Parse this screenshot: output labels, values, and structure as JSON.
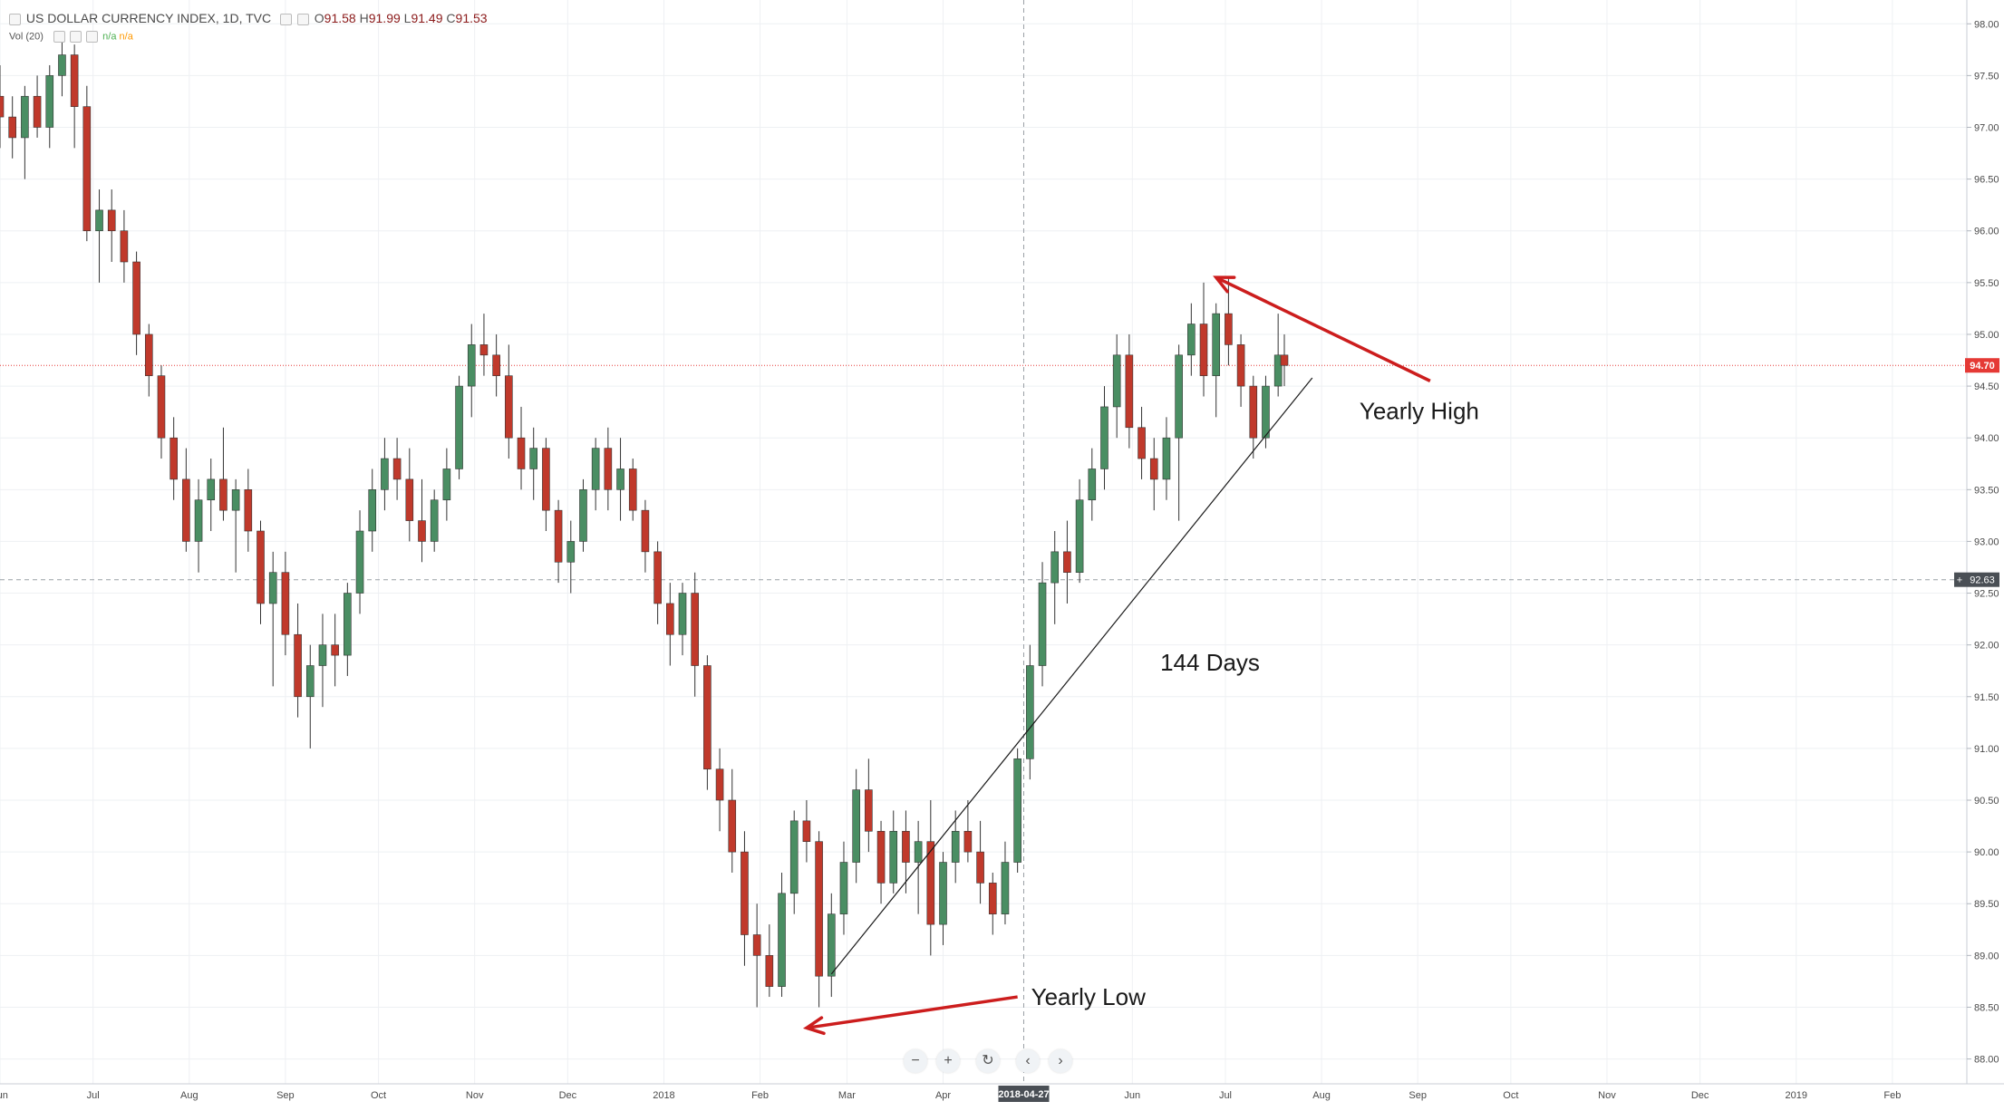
{
  "header": {
    "symbol": "US DOLLAR CURRENCY INDEX, 1D, TVC",
    "ohlc": [
      {
        "label": "O",
        "value": "91.58"
      },
      {
        "label": "H",
        "value": "91.99"
      },
      {
        "label": "L",
        "value": "91.49"
      },
      {
        "label": "C",
        "value": "91.53"
      }
    ],
    "volume_label": "Vol (20)",
    "volume_values": [
      "n/a",
      "n/a"
    ]
  },
  "price_axis": {
    "ticks": [
      "98.00",
      "97.50",
      "97.00",
      "96.50",
      "96.00",
      "95.50",
      "95.00",
      "94.50",
      "94.00",
      "93.50",
      "93.00",
      "92.50",
      "92.00",
      "91.50",
      "91.00",
      "90.50",
      "90.00",
      "89.50",
      "89.00",
      "88.50",
      "88.00"
    ],
    "last_price_label": "94.70",
    "crosshair_price_label": "92.63"
  },
  "time_axis": {
    "labels": [
      "Jun",
      "Jul",
      "Aug",
      "Sep",
      "Oct",
      "Nov",
      "Dec",
      "2018",
      "Feb",
      "Mar",
      "Apr",
      "Jun",
      "Jul",
      "Aug",
      "Sep",
      "Oct",
      "Nov",
      "Dec",
      "2019",
      "Feb"
    ],
    "crosshair_date_label": "2018-04-27"
  },
  "annotations": {
    "yearly_high": "Yearly High",
    "yearly_low": "Yearly Low",
    "days": "144 Days"
  },
  "zoom_controls": [
    "minus",
    "plus",
    "reset",
    "back",
    "forward"
  ],
  "colors": {
    "up": "#4a8e63",
    "down": "#c0392b",
    "grid": "#eef0f3",
    "arrow": "#cc1d1d",
    "last_price_line": "#e53935",
    "crosshair": "#9aa0a6"
  },
  "chart_data": {
    "type": "candlestick",
    "title": "US DOLLAR CURRENCY INDEX, 1D, TVC",
    "xlabel": "",
    "ylabel": "",
    "ylim": [
      87.76,
      98.23
    ],
    "x_range": [
      "2017-06-01",
      "2019-02-25"
    ],
    "grid": true,
    "ohlc": [
      [
        "2017-06-01",
        97.3,
        97.6,
        96.8,
        97.1
      ],
      [
        "2017-06-05",
        97.1,
        97.3,
        96.7,
        96.9
      ],
      [
        "2017-06-09",
        96.9,
        97.4,
        96.5,
        97.3
      ],
      [
        "2017-06-13",
        97.3,
        97.5,
        96.9,
        97.0
      ],
      [
        "2017-06-17",
        97.0,
        97.6,
        96.8,
        97.5
      ],
      [
        "2017-06-21",
        97.5,
        97.9,
        97.3,
        97.7
      ],
      [
        "2017-06-25",
        97.7,
        97.8,
        96.8,
        97.2
      ],
      [
        "2017-06-29",
        97.2,
        97.4,
        95.9,
        96.0
      ],
      [
        "2017-07-03",
        96.0,
        96.4,
        95.5,
        96.2
      ],
      [
        "2017-07-07",
        96.2,
        96.4,
        95.7,
        96.0
      ],
      [
        "2017-07-11",
        96.0,
        96.2,
        95.5,
        95.7
      ],
      [
        "2017-07-15",
        95.7,
        95.8,
        94.8,
        95.0
      ],
      [
        "2017-07-19",
        95.0,
        95.1,
        94.4,
        94.6
      ],
      [
        "2017-07-23",
        94.6,
        94.7,
        93.8,
        94.0
      ],
      [
        "2017-07-27",
        94.0,
        94.2,
        93.4,
        93.6
      ],
      [
        "2017-07-31",
        93.6,
        93.9,
        92.9,
        93.0
      ],
      [
        "2017-08-04",
        93.0,
        93.6,
        92.7,
        93.4
      ],
      [
        "2017-08-08",
        93.4,
        93.8,
        93.1,
        93.6
      ],
      [
        "2017-08-12",
        93.6,
        94.1,
        93.2,
        93.3
      ],
      [
        "2017-08-16",
        93.3,
        93.6,
        92.7,
        93.5
      ],
      [
        "2017-08-20",
        93.5,
        93.7,
        92.9,
        93.1
      ],
      [
        "2017-08-24",
        93.1,
        93.2,
        92.2,
        92.4
      ],
      [
        "2017-08-28",
        92.4,
        92.9,
        91.6,
        92.7
      ],
      [
        "2017-09-01",
        92.7,
        92.9,
        91.9,
        92.1
      ],
      [
        "2017-09-05",
        92.1,
        92.4,
        91.3,
        91.5
      ],
      [
        "2017-09-09",
        91.5,
        92.0,
        91.0,
        91.8
      ],
      [
        "2017-09-13",
        91.8,
        92.3,
        91.4,
        92.0
      ],
      [
        "2017-09-17",
        92.0,
        92.3,
        91.6,
        91.9
      ],
      [
        "2017-09-21",
        91.9,
        92.6,
        91.7,
        92.5
      ],
      [
        "2017-09-25",
        92.5,
        93.3,
        92.3,
        93.1
      ],
      [
        "2017-09-29",
        93.1,
        93.7,
        92.9,
        93.5
      ],
      [
        "2017-10-03",
        93.5,
        94.0,
        93.3,
        93.8
      ],
      [
        "2017-10-07",
        93.8,
        94.0,
        93.4,
        93.6
      ],
      [
        "2017-10-11",
        93.6,
        93.9,
        93.0,
        93.2
      ],
      [
        "2017-10-15",
        93.2,
        93.6,
        92.8,
        93.0
      ],
      [
        "2017-10-19",
        93.0,
        93.5,
        92.9,
        93.4
      ],
      [
        "2017-10-23",
        93.4,
        93.9,
        93.2,
        93.7
      ],
      [
        "2017-10-27",
        93.7,
        94.6,
        93.6,
        94.5
      ],
      [
        "2017-10-31",
        94.5,
        95.1,
        94.2,
        94.9
      ],
      [
        "2017-11-04",
        94.9,
        95.2,
        94.6,
        94.8
      ],
      [
        "2017-11-08",
        94.8,
        95.0,
        94.4,
        94.6
      ],
      [
        "2017-11-12",
        94.6,
        94.9,
        93.8,
        94.0
      ],
      [
        "2017-11-16",
        94.0,
        94.3,
        93.5,
        93.7
      ],
      [
        "2017-11-20",
        93.7,
        94.1,
        93.4,
        93.9
      ],
      [
        "2017-11-24",
        93.9,
        94.0,
        93.1,
        93.3
      ],
      [
        "2017-11-28",
        93.3,
        93.4,
        92.6,
        92.8
      ],
      [
        "2017-12-02",
        92.8,
        93.2,
        92.5,
        93.0
      ],
      [
        "2017-12-06",
        93.0,
        93.6,
        92.9,
        93.5
      ],
      [
        "2017-12-10",
        93.5,
        94.0,
        93.3,
        93.9
      ],
      [
        "2017-12-14",
        93.9,
        94.1,
        93.3,
        93.5
      ],
      [
        "2017-12-18",
        93.5,
        94.0,
        93.2,
        93.7
      ],
      [
        "2017-12-22",
        93.7,
        93.8,
        93.2,
        93.3
      ],
      [
        "2017-12-26",
        93.3,
        93.4,
        92.7,
        92.9
      ],
      [
        "2017-12-30",
        92.9,
        93.0,
        92.2,
        92.4
      ],
      [
        "2018-01-03",
        92.4,
        92.6,
        91.8,
        92.1
      ],
      [
        "2018-01-07",
        92.1,
        92.6,
        91.9,
        92.5
      ],
      [
        "2018-01-11",
        92.5,
        92.7,
        91.5,
        91.8
      ],
      [
        "2018-01-15",
        91.8,
        91.9,
        90.6,
        90.8
      ],
      [
        "2018-01-19",
        90.8,
        91.0,
        90.2,
        90.5
      ],
      [
        "2018-01-23",
        90.5,
        90.8,
        89.8,
        90.0
      ],
      [
        "2018-01-27",
        90.0,
        90.2,
        88.9,
        89.2
      ],
      [
        "2018-01-31",
        89.2,
        89.5,
        88.5,
        89.0
      ],
      [
        "2018-02-04",
        89.0,
        89.3,
        88.6,
        88.7
      ],
      [
        "2018-02-08",
        88.7,
        89.8,
        88.6,
        89.6
      ],
      [
        "2018-02-12",
        89.6,
        90.4,
        89.4,
        90.3
      ],
      [
        "2018-02-16",
        90.3,
        90.5,
        89.9,
        90.1
      ],
      [
        "2018-02-20",
        90.1,
        90.2,
        88.5,
        88.8
      ],
      [
        "2018-02-24",
        88.8,
        89.6,
        88.6,
        89.4
      ],
      [
        "2018-02-28",
        89.4,
        90.1,
        89.2,
        89.9
      ],
      [
        "2018-03-04",
        89.9,
        90.8,
        89.7,
        90.6
      ],
      [
        "2018-03-08",
        90.6,
        90.9,
        90.0,
        90.2
      ],
      [
        "2018-03-12",
        90.2,
        90.3,
        89.5,
        89.7
      ],
      [
        "2018-03-16",
        89.7,
        90.4,
        89.6,
        90.2
      ],
      [
        "2018-03-20",
        90.2,
        90.4,
        89.6,
        89.9
      ],
      [
        "2018-03-24",
        89.9,
        90.3,
        89.4,
        90.1
      ],
      [
        "2018-03-28",
        90.1,
        90.5,
        89.0,
        89.3
      ],
      [
        "2018-04-01",
        89.3,
        90.0,
        89.1,
        89.9
      ],
      [
        "2018-04-05",
        89.9,
        90.4,
        89.7,
        90.2
      ],
      [
        "2018-04-09",
        90.2,
        90.5,
        89.9,
        90.0
      ],
      [
        "2018-04-13",
        90.0,
        90.3,
        89.5,
        89.7
      ],
      [
        "2018-04-17",
        89.7,
        89.8,
        89.2,
        89.4
      ],
      [
        "2018-04-21",
        89.4,
        90.1,
        89.3,
        89.9
      ],
      [
        "2018-04-25",
        89.9,
        91.0,
        89.8,
        90.9
      ],
      [
        "2018-04-29",
        90.9,
        92.0,
        90.7,
        91.8
      ],
      [
        "2018-05-03",
        91.8,
        92.8,
        91.6,
        92.6
      ],
      [
        "2018-05-07",
        92.6,
        93.1,
        92.2,
        92.9
      ],
      [
        "2018-05-11",
        92.9,
        93.2,
        92.4,
        92.7
      ],
      [
        "2018-05-15",
        92.7,
        93.6,
        92.6,
        93.4
      ],
      [
        "2018-05-19",
        93.4,
        93.9,
        93.2,
        93.7
      ],
      [
        "2018-05-23",
        93.7,
        94.5,
        93.5,
        94.3
      ],
      [
        "2018-05-27",
        94.3,
        95.0,
        94.0,
        94.8
      ],
      [
        "2018-05-31",
        94.8,
        95.0,
        93.9,
        94.1
      ],
      [
        "2018-06-04",
        94.1,
        94.3,
        93.6,
        93.8
      ],
      [
        "2018-06-08",
        93.8,
        94.0,
        93.3,
        93.6
      ],
      [
        "2018-06-12",
        93.6,
        94.2,
        93.4,
        94.0
      ],
      [
        "2018-06-16",
        94.0,
        94.9,
        93.2,
        94.8
      ],
      [
        "2018-06-20",
        94.8,
        95.3,
        94.6,
        95.1
      ],
      [
        "2018-06-24",
        95.1,
        95.5,
        94.4,
        94.6
      ],
      [
        "2018-06-28",
        94.6,
        95.3,
        94.2,
        95.2
      ],
      [
        "2018-07-02",
        95.2,
        95.55,
        94.7,
        94.9
      ],
      [
        "2018-07-06",
        94.9,
        95.0,
        94.3,
        94.5
      ],
      [
        "2018-07-10",
        94.5,
        94.6,
        93.8,
        94.0
      ],
      [
        "2018-07-14",
        94.0,
        94.6,
        93.9,
        94.5
      ],
      [
        "2018-07-18",
        94.5,
        95.2,
        94.4,
        94.8
      ],
      [
        "2018-07-20",
        94.8,
        95.0,
        94.5,
        94.7
      ]
    ],
    "horizontal_lines": [
      {
        "price": 94.7,
        "label": "94.70"
      },
      {
        "price": 92.63,
        "label": "92.63"
      }
    ],
    "vertical_line": {
      "date": "2018-04-27",
      "label": "2018-04-27"
    },
    "trendline": {
      "from": [
        "2018-02-24",
        88.82
      ],
      "to": [
        "2018-07-29",
        94.58
      ]
    },
    "arrows": [
      {
        "from": [
          "2018-09-05",
          94.55
        ],
        "to": [
          "2018-06-28",
          95.55
        ],
        "label": "Yearly High"
      },
      {
        "from": [
          "2018-04-25",
          88.6
        ],
        "to": [
          "2018-02-16",
          88.3
        ],
        "label": "Yearly Low"
      }
    ],
    "text_annotations": [
      {
        "text": "144 Days",
        "date": "2018-06-10",
        "price": 91.75
      }
    ]
  }
}
